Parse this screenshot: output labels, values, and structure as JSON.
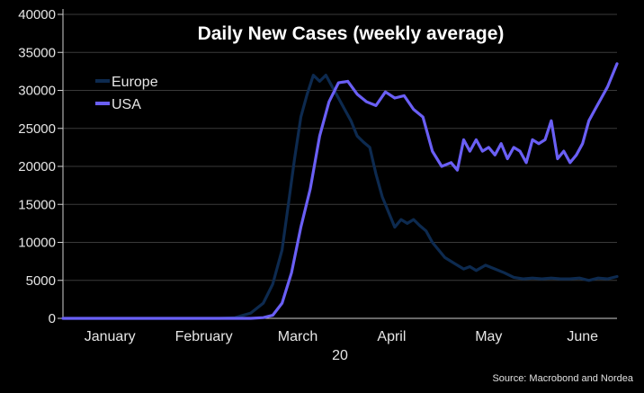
{
  "chart_data": {
    "type": "line",
    "title": "Daily New Cases (weekly average)",
    "xlabel": "20",
    "ylabel": "",
    "ylim": [
      0,
      40000
    ],
    "yticks": [
      0,
      5000,
      10000,
      15000,
      20000,
      25000,
      30000,
      35000,
      40000
    ],
    "grid": true,
    "legend_position": "top-left",
    "x_axis": {
      "type": "date",
      "range": [
        "2020-01-01",
        "2020-06-26"
      ],
      "tick_labels": [
        {
          "label": "January",
          "date": "2020-01-16"
        },
        {
          "label": "February",
          "date": "2020-02-15"
        },
        {
          "label": "March",
          "date": "2020-03-16"
        },
        {
          "label": "April",
          "date": "2020-04-15"
        },
        {
          "label": "May",
          "date": "2020-05-16"
        },
        {
          "label": "June",
          "date": "2020-06-15"
        }
      ]
    },
    "series": [
      {
        "name": "Europe",
        "color": "#0d2a4f",
        "x": [
          "2020-01-01",
          "2020-02-20",
          "2020-02-25",
          "2020-03-01",
          "2020-03-05",
          "2020-03-08",
          "2020-03-11",
          "2020-03-13",
          "2020-03-15",
          "2020-03-17",
          "2020-03-19",
          "2020-03-21",
          "2020-03-23",
          "2020-03-25",
          "2020-03-27",
          "2020-03-29",
          "2020-03-31",
          "2020-04-02",
          "2020-04-04",
          "2020-04-06",
          "2020-04-08",
          "2020-04-10",
          "2020-04-12",
          "2020-04-14",
          "2020-04-16",
          "2020-04-18",
          "2020-04-20",
          "2020-04-22",
          "2020-04-24",
          "2020-04-26",
          "2020-04-28",
          "2020-04-30",
          "2020-05-02",
          "2020-05-04",
          "2020-05-06",
          "2020-05-08",
          "2020-05-10",
          "2020-05-12",
          "2020-05-15",
          "2020-05-18",
          "2020-05-21",
          "2020-05-24",
          "2020-05-27",
          "2020-05-30",
          "2020-06-02",
          "2020-06-05",
          "2020-06-08",
          "2020-06-11",
          "2020-06-14",
          "2020-06-17",
          "2020-06-20",
          "2020-06-23",
          "2020-06-26"
        ],
        "y": [
          0,
          0,
          100,
          700,
          2000,
          4500,
          9000,
          15000,
          21000,
          26500,
          29500,
          32000,
          31200,
          32000,
          30500,
          29000,
          27500,
          26000,
          24000,
          23200,
          22500,
          19000,
          16000,
          14000,
          12000,
          13000,
          12500,
          13000,
          12200,
          11500,
          10000,
          9000,
          8000,
          7500,
          7000,
          6500,
          6800,
          6300,
          7000,
          6500,
          6000,
          5400,
          5200,
          5300,
          5200,
          5300,
          5200,
          5200,
          5300,
          5000,
          5300,
          5200,
          5500
        ]
      },
      {
        "name": "USA",
        "color": "#6a5ff5",
        "x": [
          "2020-01-01",
          "2020-03-01",
          "2020-03-05",
          "2020-03-08",
          "2020-03-11",
          "2020-03-14",
          "2020-03-17",
          "2020-03-20",
          "2020-03-23",
          "2020-03-26",
          "2020-03-29",
          "2020-04-01",
          "2020-04-04",
          "2020-04-07",
          "2020-04-10",
          "2020-04-13",
          "2020-04-16",
          "2020-04-19",
          "2020-04-22",
          "2020-04-25",
          "2020-04-28",
          "2020-05-01",
          "2020-05-04",
          "2020-05-06",
          "2020-05-08",
          "2020-05-10",
          "2020-05-12",
          "2020-05-14",
          "2020-05-16",
          "2020-05-18",
          "2020-05-20",
          "2020-05-22",
          "2020-05-24",
          "2020-05-26",
          "2020-05-28",
          "2020-05-30",
          "2020-06-01",
          "2020-06-03",
          "2020-06-05",
          "2020-06-07",
          "2020-06-09",
          "2020-06-11",
          "2020-06-13",
          "2020-06-15",
          "2020-06-17",
          "2020-06-19",
          "2020-06-21",
          "2020-06-23",
          "2020-06-26"
        ],
        "y": [
          0,
          0,
          100,
          400,
          2000,
          6000,
          12000,
          17000,
          24000,
          28500,
          31000,
          31200,
          29500,
          28500,
          28000,
          29800,
          29000,
          29300,
          27500,
          26500,
          22000,
          20000,
          20500,
          19500,
          23500,
          22000,
          23500,
          22000,
          22500,
          21500,
          23000,
          21000,
          22500,
          22000,
          20500,
          23500,
          23000,
          23500,
          26000,
          21000,
          22000,
          20500,
          21500,
          23000,
          26000,
          27500,
          29000,
          30500,
          33500
        ]
      }
    ],
    "source": "Source: Macrobond and Nordea"
  }
}
